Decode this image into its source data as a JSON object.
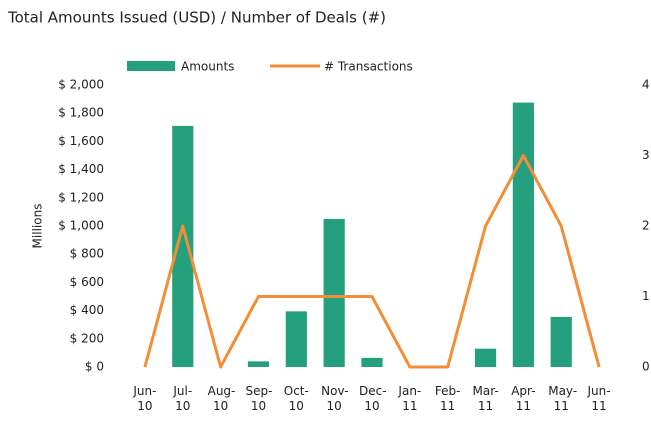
{
  "chart_data": {
    "type": "bar_line",
    "title": "Total Amounts Issued (USD) / Number of Deals (#)",
    "ylabel": "Millions",
    "categories": [
      "Jun-10",
      "Jul-10",
      "Aug-10",
      "Sep-10",
      "Oct-10",
      "Nov-10",
      "Dec-10",
      "Jan-11",
      "Feb-11",
      "Mar-11",
      "Apr-11",
      "May-11",
      "Jun-11"
    ],
    "series": [
      {
        "name": "Amounts",
        "color": "#25a07f",
        "type": "bar",
        "values": [
          0,
          1710,
          0,
          40,
          395,
          1050,
          65,
          0,
          0,
          130,
          1875,
          355,
          0
        ]
      },
      {
        "name": "# Transactions",
        "color": "#f28e35",
        "type": "line",
        "axis": "y2",
        "values": [
          0,
          2,
          0,
          1,
          1,
          1,
          1,
          0,
          0,
          2,
          3,
          2,
          0
        ]
      }
    ],
    "ylim": [
      0,
      2000
    ],
    "yticks": [
      {
        "value": 0,
        "label": "$ 0"
      },
      {
        "value": 200,
        "label": "$ 200"
      },
      {
        "value": 400,
        "label": "$ 400"
      },
      {
        "value": 600,
        "label": "$ 600"
      },
      {
        "value": 800,
        "label": "$ 800"
      },
      {
        "value": 1000,
        "label": "$ 1,000"
      },
      {
        "value": 1200,
        "label": "$ 1,200"
      },
      {
        "value": 1400,
        "label": "$ 1,400"
      },
      {
        "value": 1600,
        "label": "$ 1,600"
      },
      {
        "value": 1800,
        "label": "$ 1,800"
      },
      {
        "value": 2000,
        "label": "$ 2,000"
      }
    ],
    "y2lim": [
      0,
      4
    ],
    "y2ticks": [
      0,
      1,
      2,
      3,
      4
    ],
    "legend": "top"
  }
}
